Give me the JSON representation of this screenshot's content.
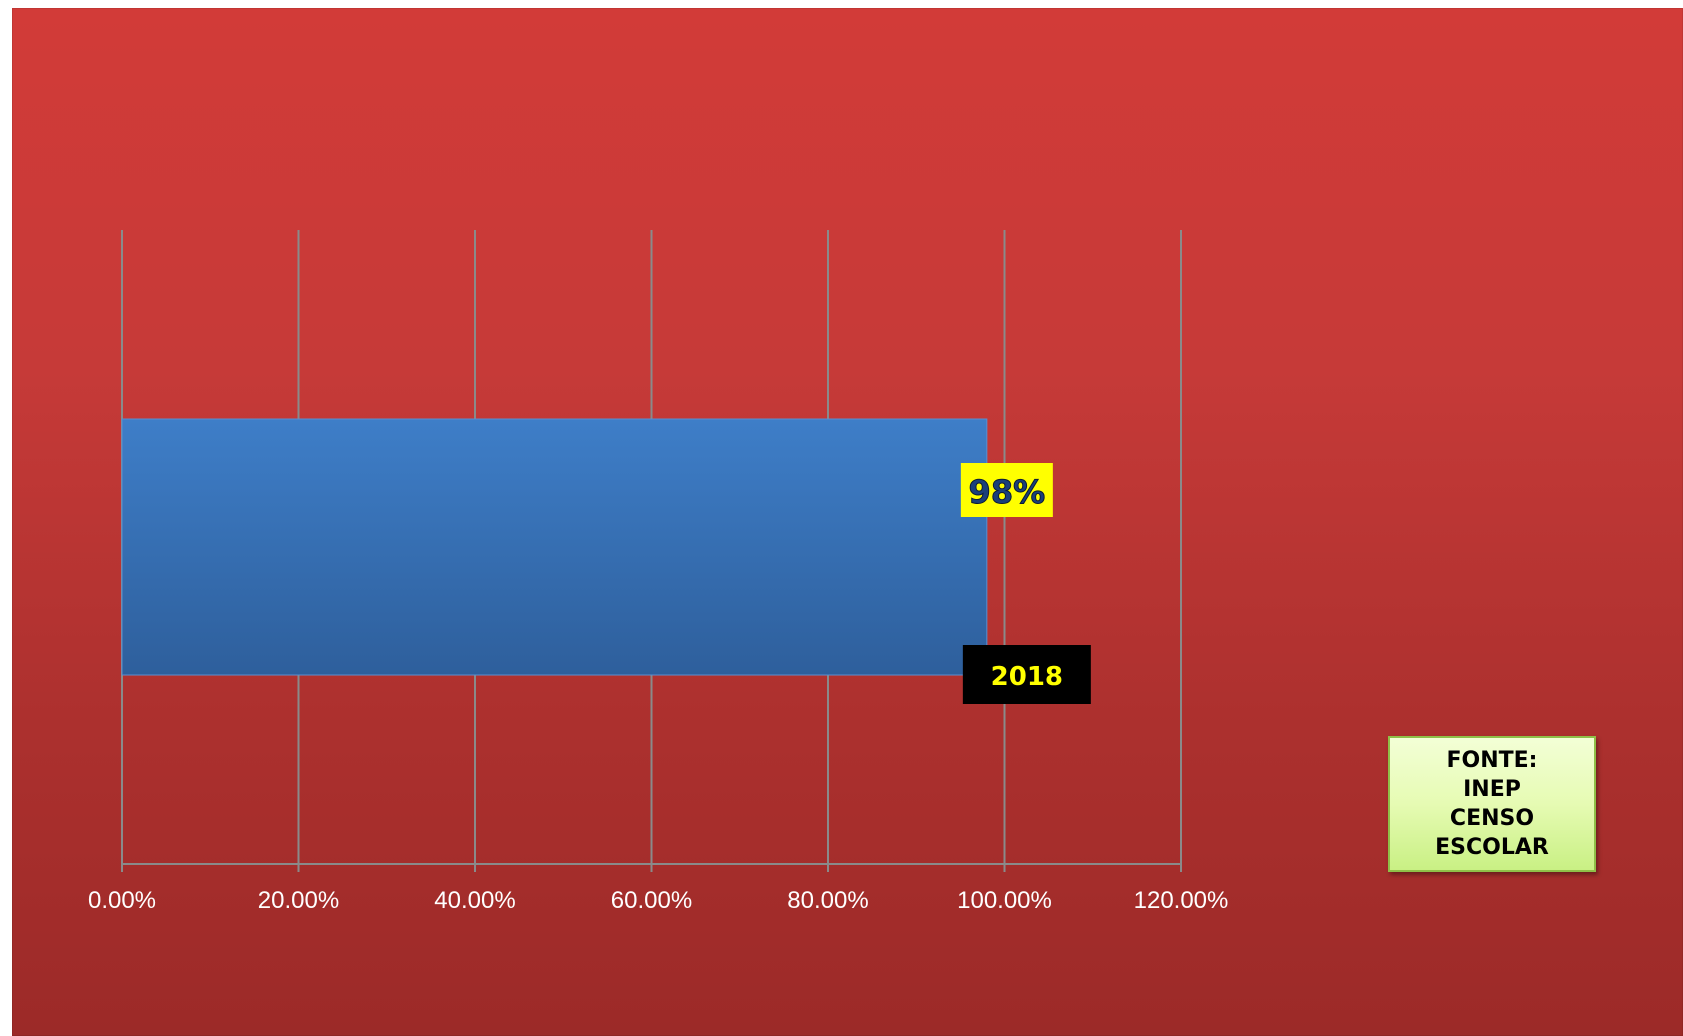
{
  "chart_data": {
    "type": "bar",
    "orientation": "horizontal",
    "categories": [
      "2018"
    ],
    "values": [
      0.98
    ],
    "data_labels": [
      "98%"
    ],
    "x_tick_labels": [
      "0.00%",
      "20.00%",
      "40.00%",
      "60.00%",
      "80.00%",
      "100.00%",
      "120.00%"
    ],
    "xlim": [
      0,
      1.2
    ],
    "grid": true,
    "colors": {
      "background_top": "#d23b38",
      "background_bottom": "#9c2a28",
      "bar_top": "#3e7ec8",
      "bar_bottom": "#2e5f9c",
      "data_label_bg": "#ffff00",
      "category_label_bg": "#000000",
      "category_label_text": "#ffff00"
    }
  },
  "source_note": {
    "lines": [
      "FONTE:",
      "INEP",
      "CENSO",
      "ESCOLAR"
    ]
  }
}
